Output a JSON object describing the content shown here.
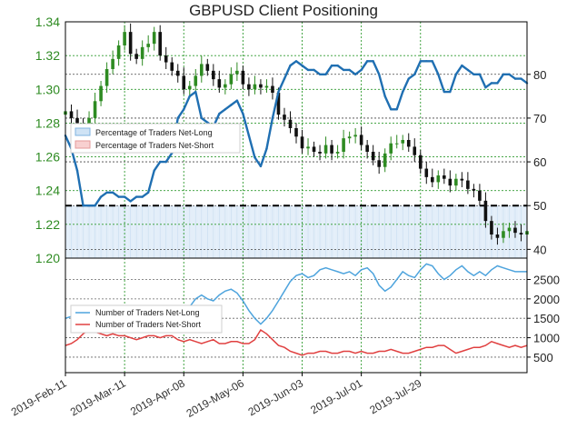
{
  "chart_data": {
    "type": "line",
    "title": "GBPUSD Client Positioning",
    "x_tick_labels": [
      "2019-Feb-11",
      "2019-Mar-11",
      "2019-Apr-08",
      "2019-May-06",
      "2019-Jun-03",
      "2019-Jul-01",
      "2019-Jul-29"
    ],
    "top_panel": {
      "price_axis": {
        "label": "",
        "ticks": [
          1.2,
          1.22,
          1.24,
          1.26,
          1.28,
          1.3,
          1.32,
          1.34
        ],
        "range": [
          1.2,
          1.34
        ],
        "color": "#2e8b22"
      },
      "pct_axis": {
        "label": "",
        "ticks": [
          40,
          50,
          60,
          70,
          80
        ],
        "range": [
          38,
          92
        ]
      },
      "reference_line": 50,
      "legend": {
        "position": "left-middle",
        "entries": [
          "Percentage of Traders Net-Long",
          "Percentage of Traders Net-Short"
        ]
      },
      "series": [
        {
          "name": "Percentage of Traders Net-Long",
          "color": "#1f6fb2",
          "values": [
            66,
            63,
            58,
            50,
            50,
            50,
            52,
            53,
            53,
            52,
            52,
            51,
            52,
            52,
            53,
            58,
            60,
            60,
            62,
            70,
            72,
            75,
            76,
            70,
            69,
            68,
            71,
            72,
            73,
            74,
            71,
            66,
            61,
            59,
            63,
            70,
            76,
            79,
            82,
            83,
            82,
            81,
            81,
            80,
            80,
            82,
            82,
            81,
            81,
            80,
            81,
            83,
            83,
            80,
            75,
            72,
            72,
            76,
            79,
            80,
            83,
            83,
            83,
            80,
            76,
            76,
            80,
            82,
            81,
            80,
            80,
            77,
            78,
            78,
            80,
            80,
            79,
            79,
            78
          ]
        }
      ],
      "price": {
        "name": "GBPUSD",
        "close": [
          1.287,
          1.283,
          1.28,
          1.278,
          1.283,
          1.293,
          1.302,
          1.312,
          1.318,
          1.326,
          1.334,
          1.321,
          1.318,
          1.325,
          1.327,
          1.334,
          1.32,
          1.316,
          1.311,
          1.308,
          1.3,
          1.302,
          1.308,
          1.315,
          1.311,
          1.306,
          1.301,
          1.303,
          1.309,
          1.311,
          1.303,
          1.3,
          1.303,
          1.301,
          1.302,
          1.298,
          1.285,
          1.282,
          1.277,
          1.272,
          1.265,
          1.266,
          1.263,
          1.262,
          1.267,
          1.262,
          1.263,
          1.271,
          1.272,
          1.273,
          1.267,
          1.263,
          1.258,
          1.254,
          1.262,
          1.268,
          1.268,
          1.27,
          1.266,
          1.261,
          1.253,
          1.248,
          1.245,
          1.249,
          1.247,
          1.243,
          1.247,
          1.246,
          1.241,
          1.24,
          1.234,
          1.222,
          1.214,
          1.212,
          1.216,
          1.218,
          1.215,
          1.214,
          1.216
        ],
        "color_up": "#2e8b22",
        "color_down": "#111111"
      }
    },
    "bottom_panel": {
      "count_axis": {
        "label": "",
        "ticks": [
          500,
          1000,
          1500,
          2000,
          2500
        ],
        "range": [
          100,
          3050
        ]
      },
      "legend": {
        "position": "left-top",
        "entries": [
          "Number of Traders Net-Long",
          "Number of Traders Net-Short"
        ]
      },
      "series": [
        {
          "name": "Number of Traders Net-Long",
          "color": "#4ea4dd",
          "values": [
            1500,
            1550,
            1300,
            1250,
            1200,
            1250,
            1250,
            1300,
            1300,
            1350,
            1400,
            1350,
            1400,
            1350,
            1350,
            1400,
            1450,
            1500,
            1500,
            1500,
            1550,
            1800,
            2000,
            2100,
            2000,
            1950,
            2100,
            2200,
            2250,
            2150,
            1950,
            1700,
            1500,
            1350,
            1500,
            1700,
            1950,
            2200,
            2450,
            2600,
            2650,
            2550,
            2600,
            2750,
            2800,
            2750,
            2700,
            2650,
            2700,
            2600,
            2750,
            2800,
            2650,
            2350,
            2200,
            2300,
            2500,
            2700,
            2600,
            2550,
            2750,
            2900,
            2850,
            2650,
            2500,
            2600,
            2750,
            2850,
            2700,
            2600,
            2700,
            2600,
            2750,
            2850,
            2800,
            2750,
            2700,
            2700,
            2700
          ]
        },
        {
          "name": "Number of Traders Net-Short",
          "color": "#e04040",
          "values": [
            800,
            850,
            950,
            1100,
            1200,
            1150,
            1100,
            1050,
            1100,
            1050,
            1050,
            1000,
            950,
            1000,
            1050,
            1050,
            1000,
            1050,
            1050,
            950,
            900,
            950,
            900,
            850,
            900,
            950,
            850,
            850,
            900,
            900,
            850,
            850,
            950,
            1200,
            1100,
            950,
            800,
            750,
            650,
            600,
            550,
            600,
            600,
            650,
            650,
            600,
            600,
            650,
            650,
            600,
            650,
            600,
            600,
            650,
            650,
            700,
            650,
            600,
            600,
            650,
            700,
            750,
            750,
            800,
            800,
            700,
            600,
            650,
            700,
            750,
            750,
            800,
            900,
            850,
            800,
            750,
            800,
            750,
            800
          ]
        }
      ]
    }
  }
}
